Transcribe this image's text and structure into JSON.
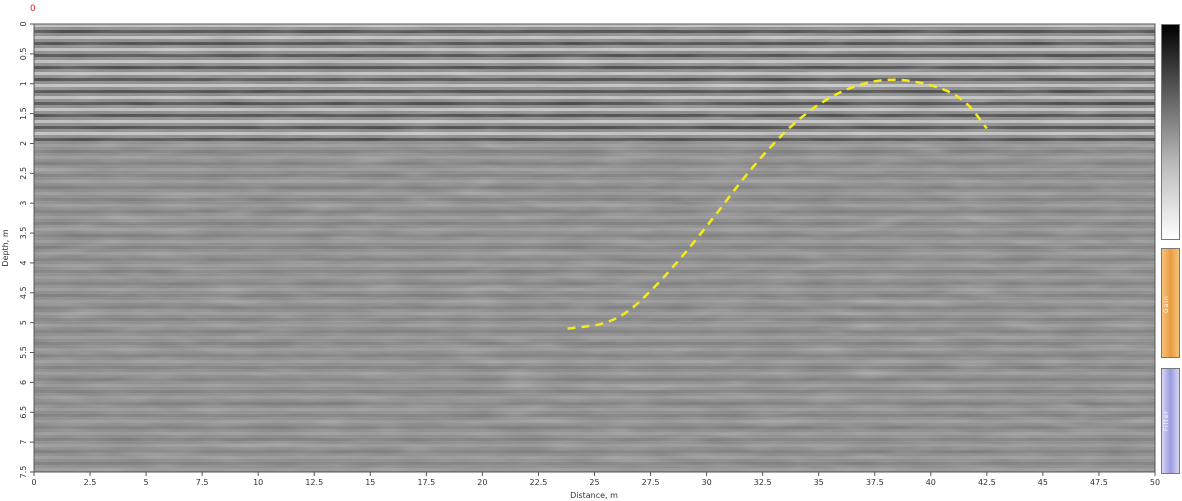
{
  "corner_marker": "0",
  "chart_data": {
    "type": "heatmap",
    "title": "",
    "xlabel": "Distance, m",
    "ylabel": "Depth, m",
    "xlim": [
      0,
      50
    ],
    "ylim": [
      0,
      7.5
    ],
    "x_ticks": [
      "0",
      "2.5",
      "5",
      "7.5",
      "10",
      "12.5",
      "15",
      "17.5",
      "20",
      "22.5",
      "25",
      "27.5",
      "30",
      "32.5",
      "35",
      "37.5",
      "40",
      "42.5",
      "45",
      "47.5",
      "50"
    ],
    "y_ticks": [
      "0",
      "0.5",
      "1",
      "1.5",
      "2",
      "2.5",
      "3",
      "3.5",
      "4",
      "4.5",
      "5",
      "5.5",
      "6",
      "6.5",
      "7",
      "7.5"
    ],
    "colormap": [
      "#000000",
      "#ffffff"
    ],
    "annotation": {
      "style": "dashed",
      "color": "#f7ea1a",
      "points": [
        [
          23.8,
          5.1
        ],
        [
          26.0,
          5.0
        ],
        [
          28.0,
          4.3
        ],
        [
          30.0,
          3.4
        ],
        [
          32.0,
          2.4
        ],
        [
          34.0,
          1.6
        ],
        [
          36.0,
          1.1
        ],
        [
          38.0,
          0.9
        ],
        [
          40.0,
          1.0
        ],
        [
          41.5,
          1.25
        ],
        [
          42.5,
          1.75
        ]
      ]
    }
  },
  "side_panels": {
    "gain_label": "Gain",
    "filter_label": "Filter"
  }
}
